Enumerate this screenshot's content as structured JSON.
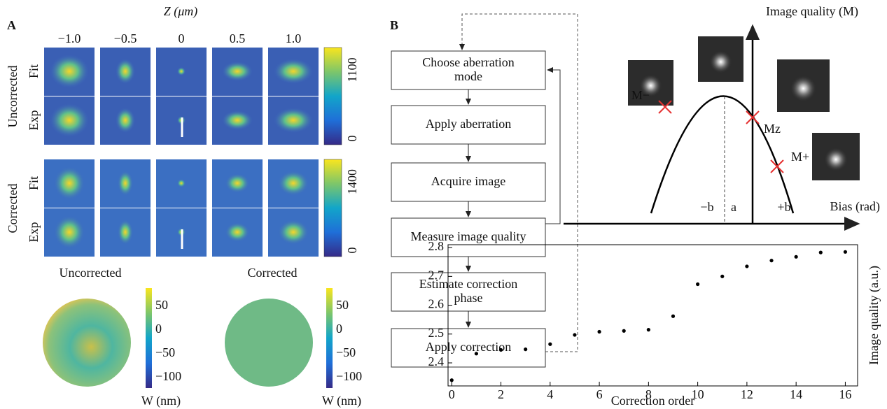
{
  "panel_a": {
    "label": "A",
    "axis_title": "Z (μm)",
    "columns": [
      "−1.0",
      "−0.5",
      "0",
      "0.5",
      "1.0"
    ],
    "uncorrected": {
      "group": "Uncorrected",
      "rows": [
        "Fit",
        "Exp"
      ],
      "colorbar_ticks": [
        "1100",
        "0"
      ]
    },
    "corrected": {
      "group": "Corrected",
      "rows": [
        "Fit",
        "Exp"
      ],
      "colorbar_ticks": [
        "1400",
        "0"
      ]
    },
    "wavefronts": [
      {
        "title": "Uncorrected",
        "colorbar_ticks": [
          "50",
          "0",
          "−50",
          "−100"
        ],
        "unit": "W (nm)"
      },
      {
        "title": "Corrected",
        "colorbar_ticks": [
          "50",
          "0",
          "−50",
          "−100"
        ],
        "unit": "W (nm)"
      }
    ]
  },
  "panel_b": {
    "label": "B",
    "steps": [
      [
        "Choose aberration",
        "mode"
      ],
      [
        "Apply aberration"
      ],
      [
        "Acquire image"
      ],
      [
        "Measure image quality"
      ],
      [
        "Estimate correction",
        "phase"
      ],
      [
        "Apply correction"
      ]
    ],
    "diagram": {
      "y_axis": "Image quality (M)",
      "x_axis": "Bias (rad)",
      "points": [
        "M−",
        "Mz",
        "M+"
      ],
      "bias_labels": [
        "−b",
        "a",
        "+b"
      ]
    }
  },
  "chart_data": {
    "type": "scatter",
    "xlabel": "Correction order",
    "ylabel": "Image quality (a.u.)",
    "x": [
      0,
      1,
      2,
      3,
      4,
      5,
      6,
      7,
      8,
      9,
      10,
      11,
      12,
      13,
      14,
      15,
      16
    ],
    "values": [
      2.34,
      2.432,
      2.445,
      2.447,
      2.465,
      2.497,
      2.508,
      2.511,
      2.515,
      2.562,
      2.673,
      2.7,
      2.735,
      2.755,
      2.768,
      2.783,
      2.785
    ],
    "xlim": [
      -0.15,
      16.5
    ],
    "ylim": [
      2.32,
      2.81
    ],
    "xticks": [
      0,
      2,
      4,
      6,
      8,
      10,
      12,
      14,
      16
    ],
    "yticks": [
      2.4,
      2.5,
      2.6,
      2.7,
      2.8
    ],
    "color": "#000000"
  }
}
